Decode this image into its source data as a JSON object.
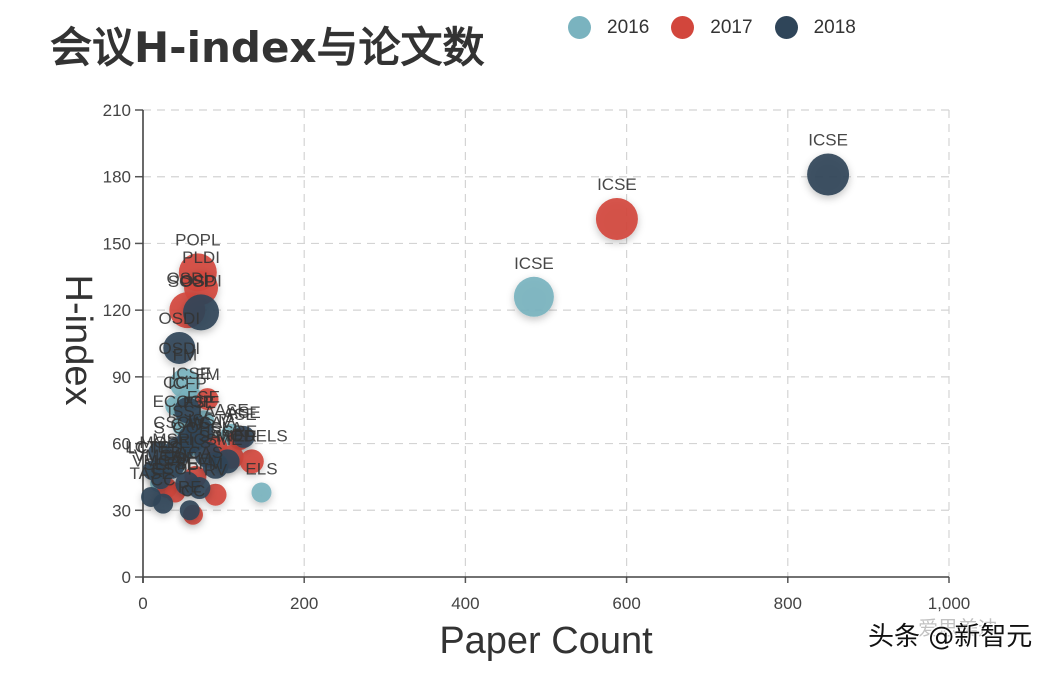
{
  "title": "会议H-index与论文数",
  "legend": [
    {
      "label": "2016",
      "color": "#7ab3bf"
    },
    {
      "label": "2017",
      "color": "#d2463c"
    },
    {
      "label": "2018",
      "color": "#2f4559"
    }
  ],
  "axes": {
    "xlabel": "Paper Count",
    "ylabel": "H-index",
    "xticks": [
      "0",
      "200",
      "400",
      "600",
      "800",
      "1,000"
    ],
    "yticks": [
      "0",
      "30",
      "60",
      "90",
      "120",
      "150",
      "180",
      "210"
    ]
  },
  "watermark": {
    "main": "头条 @新智元",
    "faint": "爱思美迪"
  },
  "chart_data": {
    "type": "scatter",
    "title": "会议H-index与论文数",
    "xlabel": "Paper Count",
    "ylabel": "H-index",
    "xlim": [
      0,
      1000
    ],
    "ylim": [
      0,
      210
    ],
    "grid": true,
    "legend_position": "top-right",
    "series": [
      {
        "name": "2016",
        "color": "#7ab3bf",
        "points": [
          {
            "label": "ICSE",
            "x": 485,
            "y": 126,
            "r": 20
          },
          {
            "label": "FM",
            "x": 52,
            "y": 87,
            "r": 15
          },
          {
            "label": "OSDI",
            "x": 45,
            "y": 103,
            "r": 0
          },
          {
            "label": "ICSE",
            "x": 60,
            "y": 80,
            "r": 12
          },
          {
            "label": "ELS",
            "x": 147,
            "y": 38,
            "r": 10
          },
          {
            "label": "CC",
            "x": 40,
            "y": 77,
            "r": 10
          },
          {
            "label": "ECOOP",
            "x": 50,
            "y": 68,
            "r": 11
          },
          {
            "label": "FSE",
            "x": 75,
            "y": 70,
            "r": 11
          },
          {
            "label": "ASE",
            "x": 110,
            "y": 64,
            "r": 11
          },
          {
            "label": "ISSTA",
            "x": 85,
            "y": 60,
            "r": 10
          },
          {
            "label": "CAV",
            "x": 55,
            "y": 58,
            "r": 10
          },
          {
            "label": "MODELS",
            "x": 40,
            "y": 50,
            "r": 10
          },
          {
            "label": "LCTES",
            "x": 15,
            "y": 48,
            "r": 9
          },
          {
            "label": "VMCAI",
            "x": 20,
            "y": 42,
            "r": 9
          }
        ]
      },
      {
        "name": "2017",
        "color": "#d2463c",
        "points": [
          {
            "label": "ICSE",
            "x": 588,
            "y": 161,
            "r": 21
          },
          {
            "label": "POPL",
            "x": 68,
            "y": 137,
            "r": 19
          },
          {
            "label": "PLDI",
            "x": 72,
            "y": 130,
            "r": 17
          },
          {
            "label": "SOSP",
            "x": 60,
            "y": 133,
            "r": 0
          },
          {
            "label": "OSDI",
            "x": 55,
            "y": 120,
            "r": 18
          },
          {
            "label": "FM",
            "x": 80,
            "y": 80,
            "r": 11
          },
          {
            "label": "CAV",
            "x": 90,
            "y": 58,
            "r": 12
          },
          {
            "label": "ASE",
            "x": 120,
            "y": 62,
            "r": 11
          },
          {
            "label": "ISSRE",
            "x": 110,
            "y": 54,
            "r": 12
          },
          {
            "label": "MODELS",
            "x": 135,
            "y": 52,
            "r": 12
          },
          {
            "label": "RV",
            "x": 90,
            "y": 37,
            "r": 11
          },
          {
            "label": "TACAS",
            "x": 65,
            "y": 45,
            "r": 11
          },
          {
            "label": "SEFM",
            "x": 30,
            "y": 40,
            "r": 10
          },
          {
            "label": "CC",
            "x": 62,
            "y": 28,
            "r": 10
          },
          {
            "label": "ESOP",
            "x": 40,
            "y": 38,
            "r": 10
          }
        ]
      },
      {
        "name": "2018",
        "color": "#2f4559",
        "points": [
          {
            "label": "ICSE",
            "x": 850,
            "y": 181,
            "r": 21
          },
          {
            "label": "OSDI",
            "x": 72,
            "y": 119,
            "r": 18
          },
          {
            "label": "OSDI",
            "x": 45,
            "y": 103,
            "r": 16
          },
          {
            "label": "ICFP",
            "x": 55,
            "y": 75,
            "r": 13
          },
          {
            "label": "FSE",
            "x": 70,
            "y": 66,
            "r": 14
          },
          {
            "label": "ASE",
            "x": 125,
            "y": 63,
            "r": 11
          },
          {
            "label": "ISSTA",
            "x": 60,
            "y": 62,
            "r": 14
          },
          {
            "label": "CSCW",
            "x": 45,
            "y": 57,
            "r": 14
          },
          {
            "label": "S",
            "x": 20,
            "y": 56,
            "r": 11
          },
          {
            "label": "OOPSLA",
            "x": 80,
            "y": 55,
            "r": 13
          },
          {
            "label": "MSR",
            "x": 35,
            "y": 50,
            "r": 13
          },
          {
            "label": "ICSME",
            "x": 90,
            "y": 50,
            "r": 13
          },
          {
            "label": "SANER",
            "x": 105,
            "y": 52,
            "r": 12
          },
          {
            "label": "LCTES",
            "x": 12,
            "y": 48,
            "r": 10
          },
          {
            "label": "VMCAI",
            "x": 22,
            "y": 44,
            "r": 10
          },
          {
            "label": "ESEM",
            "x": 55,
            "y": 42,
            "r": 12
          },
          {
            "label": "SEFM",
            "x": 70,
            "y": 40,
            "r": 11
          },
          {
            "label": "TASE",
            "x": 10,
            "y": 36,
            "r": 10
          },
          {
            "label": "CC",
            "x": 25,
            "y": 33,
            "r": 10
          },
          {
            "label": "RE",
            "x": 58,
            "y": 30,
            "r": 10
          }
        ]
      }
    ],
    "visible_labels": [
      "POPL",
      "SOSP",
      "PLDI",
      "OSDI",
      "OSDI",
      "FM",
      "FM",
      "ICSE",
      "ICSE",
      "ICSE",
      "ASE",
      "ASE",
      "ASE",
      "ISSTA",
      "FSE",
      "ECOOP",
      "ICSE",
      "CAV",
      "ISSRE",
      "MODELS",
      "ELS",
      "LCTES",
      "VMCAI",
      "ESEM",
      "SEFM",
      "MSR",
      "CC"
    ]
  }
}
